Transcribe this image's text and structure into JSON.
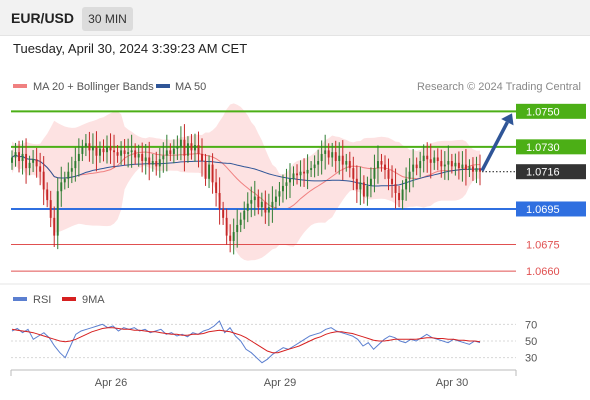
{
  "header": {
    "symbol": "EUR/USD",
    "timeframe": "30 MIN",
    "timestamp": "Tuesday, April 30, 2024 3:39:23 AM CET"
  },
  "colors": {
    "candle_up": "#2e7d32",
    "candle_down": "#c62828",
    "bollinger_band": "#fde2e2",
    "ma20": "#f08080",
    "ma50": "#2f5597",
    "resistance": "#4caf16",
    "support_blue": "#2f6fe0",
    "support_red": "#e05050",
    "rsi_line": "#5b7fd0",
    "rsi_ma": "#d62020",
    "arrow": "#2f5597",
    "current_price_box": "#333333"
  },
  "chart_data": [
    {
      "type": "candlestick",
      "legend": [
        {
          "label": "MA 20 + Bollinger Bands",
          "color": "#f08080"
        },
        {
          "label": "MA 50",
          "color": "#2f5597"
        }
      ],
      "credit": "Research © 2024 Trading Central",
      "ylim": [
        1.0655,
        1.0753
      ],
      "x_ticks": [
        "Apr 26",
        "Apr 29",
        "Apr 30"
      ],
      "current_price": "1.0716",
      "levels": [
        {
          "label": "1.0750",
          "value": 1.075,
          "role": "resistance"
        },
        {
          "label": "1.0730",
          "value": 1.073,
          "role": "resistance"
        },
        {
          "label": "1.0695",
          "value": 1.0695,
          "role": "support"
        },
        {
          "label": "1.0675",
          "value": 1.0675,
          "role": "support"
        },
        {
          "label": "1.0660",
          "value": 1.066,
          "role": "support"
        }
      ],
      "projection": {
        "from": 1.0716,
        "to": 1.075
      },
      "series_close": [
        1.0724,
        1.0727,
        1.0722,
        1.0726,
        1.0718,
        1.0721,
        1.0723,
        1.0719,
        1.0716,
        1.0706,
        1.07,
        1.069,
        1.068,
        1.0705,
        1.071,
        1.0712,
        1.0716,
        1.0718,
        1.0722,
        1.0726,
        1.073,
        1.0732,
        1.0728,
        1.073,
        1.0725,
        1.0729,
        1.0727,
        1.073,
        1.0728,
        1.0727,
        1.0725,
        1.0728,
        1.0726,
        1.0727,
        1.0728,
        1.0724,
        1.0726,
        1.0722,
        1.0724,
        1.072,
        1.0722,
        1.0719,
        1.0723,
        1.0725,
        1.0728,
        1.0726,
        1.0729,
        1.073,
        1.0734,
        1.0725,
        1.0732,
        1.0728,
        1.0731,
        1.0726,
        1.0722,
        1.0712,
        1.072,
        1.071,
        1.0704,
        1.0695,
        1.069,
        1.068,
        1.0677,
        1.0682,
        1.0686,
        1.0689,
        1.0694,
        1.0698,
        1.07,
        1.0702,
        1.0696,
        1.0699,
        1.0693,
        1.0696,
        1.0699,
        1.0702,
        1.0705,
        1.0708,
        1.071,
        1.0712,
        1.0715,
        1.0714,
        1.0716,
        1.0715,
        1.0717,
        1.0718,
        1.072,
        1.0722,
        1.0726,
        1.0728,
        1.0724,
        1.0727,
        1.0722,
        1.0725,
        1.072,
        1.0722,
        1.0718,
        1.0712,
        1.0706,
        1.071,
        1.0702,
        1.0708,
        1.0712,
        1.0718,
        1.0722,
        1.072,
        1.0717,
        1.0712,
        1.0709,
        1.0704,
        1.07,
        1.0706,
        1.0712,
        1.0716,
        1.072,
        1.0718,
        1.0722,
        1.0725,
        1.0723,
        1.0721,
        1.0724,
        1.0722,
        1.0719,
        1.072,
        1.0722,
        1.0719,
        1.0721,
        1.0718,
        1.072,
        1.0717,
        1.0719,
        1.0716,
        1.0718,
        1.0716
      ]
    },
    {
      "type": "line",
      "legend": [
        {
          "label": "RSI",
          "color": "#5b7fd0"
        },
        {
          "label": "9MA",
          "color": "#d62020"
        }
      ],
      "ylim": [
        20,
        80
      ],
      "y_ticks": [
        70,
        50,
        30
      ],
      "series": [
        {
          "name": "RSI",
          "values": [
            62,
            65,
            60,
            64,
            52,
            56,
            60,
            54,
            44,
            36,
            30,
            44,
            58,
            62,
            64,
            66,
            68,
            70,
            66,
            68,
            62,
            66,
            64,
            66,
            62,
            64,
            60,
            62,
            64,
            58,
            60,
            56,
            58,
            55,
            60,
            58,
            62,
            64,
            68,
            74,
            60,
            66,
            56,
            50,
            40,
            36,
            30,
            24,
            28,
            34,
            38,
            42,
            40,
            44,
            48,
            52,
            56,
            58,
            60,
            64,
            66,
            62,
            60,
            58,
            56,
            52,
            44,
            48,
            40,
            46,
            52,
            56,
            54,
            50,
            48,
            52,
            50,
            54,
            58,
            54,
            52,
            50,
            48,
            52,
            50,
            48,
            46,
            50,
            48
          ]
        },
        {
          "name": "9MA",
          "values": [
            64,
            63,
            62,
            61,
            60,
            58,
            56,
            54,
            52,
            50,
            49,
            50,
            52,
            55,
            58,
            61,
            63,
            65,
            66,
            66,
            65,
            64,
            64,
            63,
            63,
            62,
            61,
            61,
            60,
            59,
            58,
            58,
            57,
            57,
            58,
            58,
            59,
            61,
            62,
            63,
            62,
            61,
            59,
            57,
            54,
            50,
            46,
            42,
            38,
            36,
            36,
            38,
            40,
            42,
            44,
            47,
            50,
            53,
            55,
            58,
            60,
            61,
            61,
            60,
            59,
            57,
            55,
            53,
            51,
            50,
            50,
            51,
            52,
            52,
            52,
            52,
            52,
            53,
            54,
            54,
            53,
            53,
            52,
            52,
            51,
            51,
            50,
            50,
            49
          ]
        }
      ]
    }
  ]
}
